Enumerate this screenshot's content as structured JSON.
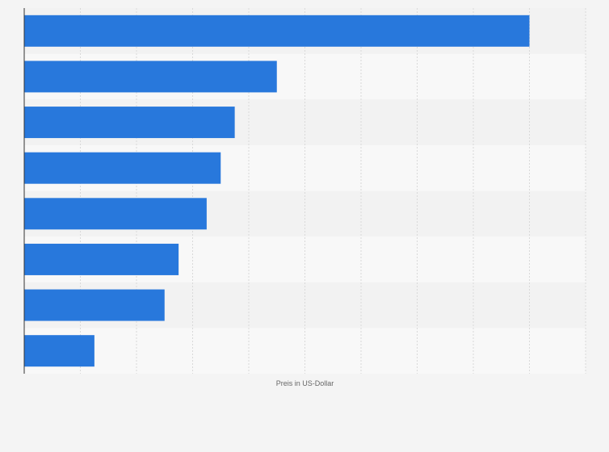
{
  "chart_data": {
    "type": "bar",
    "orientation": "horizontal",
    "categories": [
      "",
      "",
      "",
      "",
      "",
      "",
      "",
      ""
    ],
    "values": [
      90,
      45,
      37.5,
      35,
      32.5,
      27.5,
      25,
      12.5
    ],
    "title": "",
    "xlabel": "Preis in US-Dollar",
    "ylabel": "",
    "xlim": [
      0,
      100
    ],
    "x_gridlines": [
      10,
      20,
      30,
      40,
      50,
      60,
      70,
      80,
      90,
      100
    ],
    "tick_labels_visible": false,
    "grid": true,
    "legend": "none",
    "colors": {
      "bar": "#2878dc",
      "band_dark": "#f2f2f2",
      "band_light": "#f8f8f8",
      "grid": "#d9d9d9",
      "axis": "#333333",
      "background": "#f4f4f4"
    }
  }
}
